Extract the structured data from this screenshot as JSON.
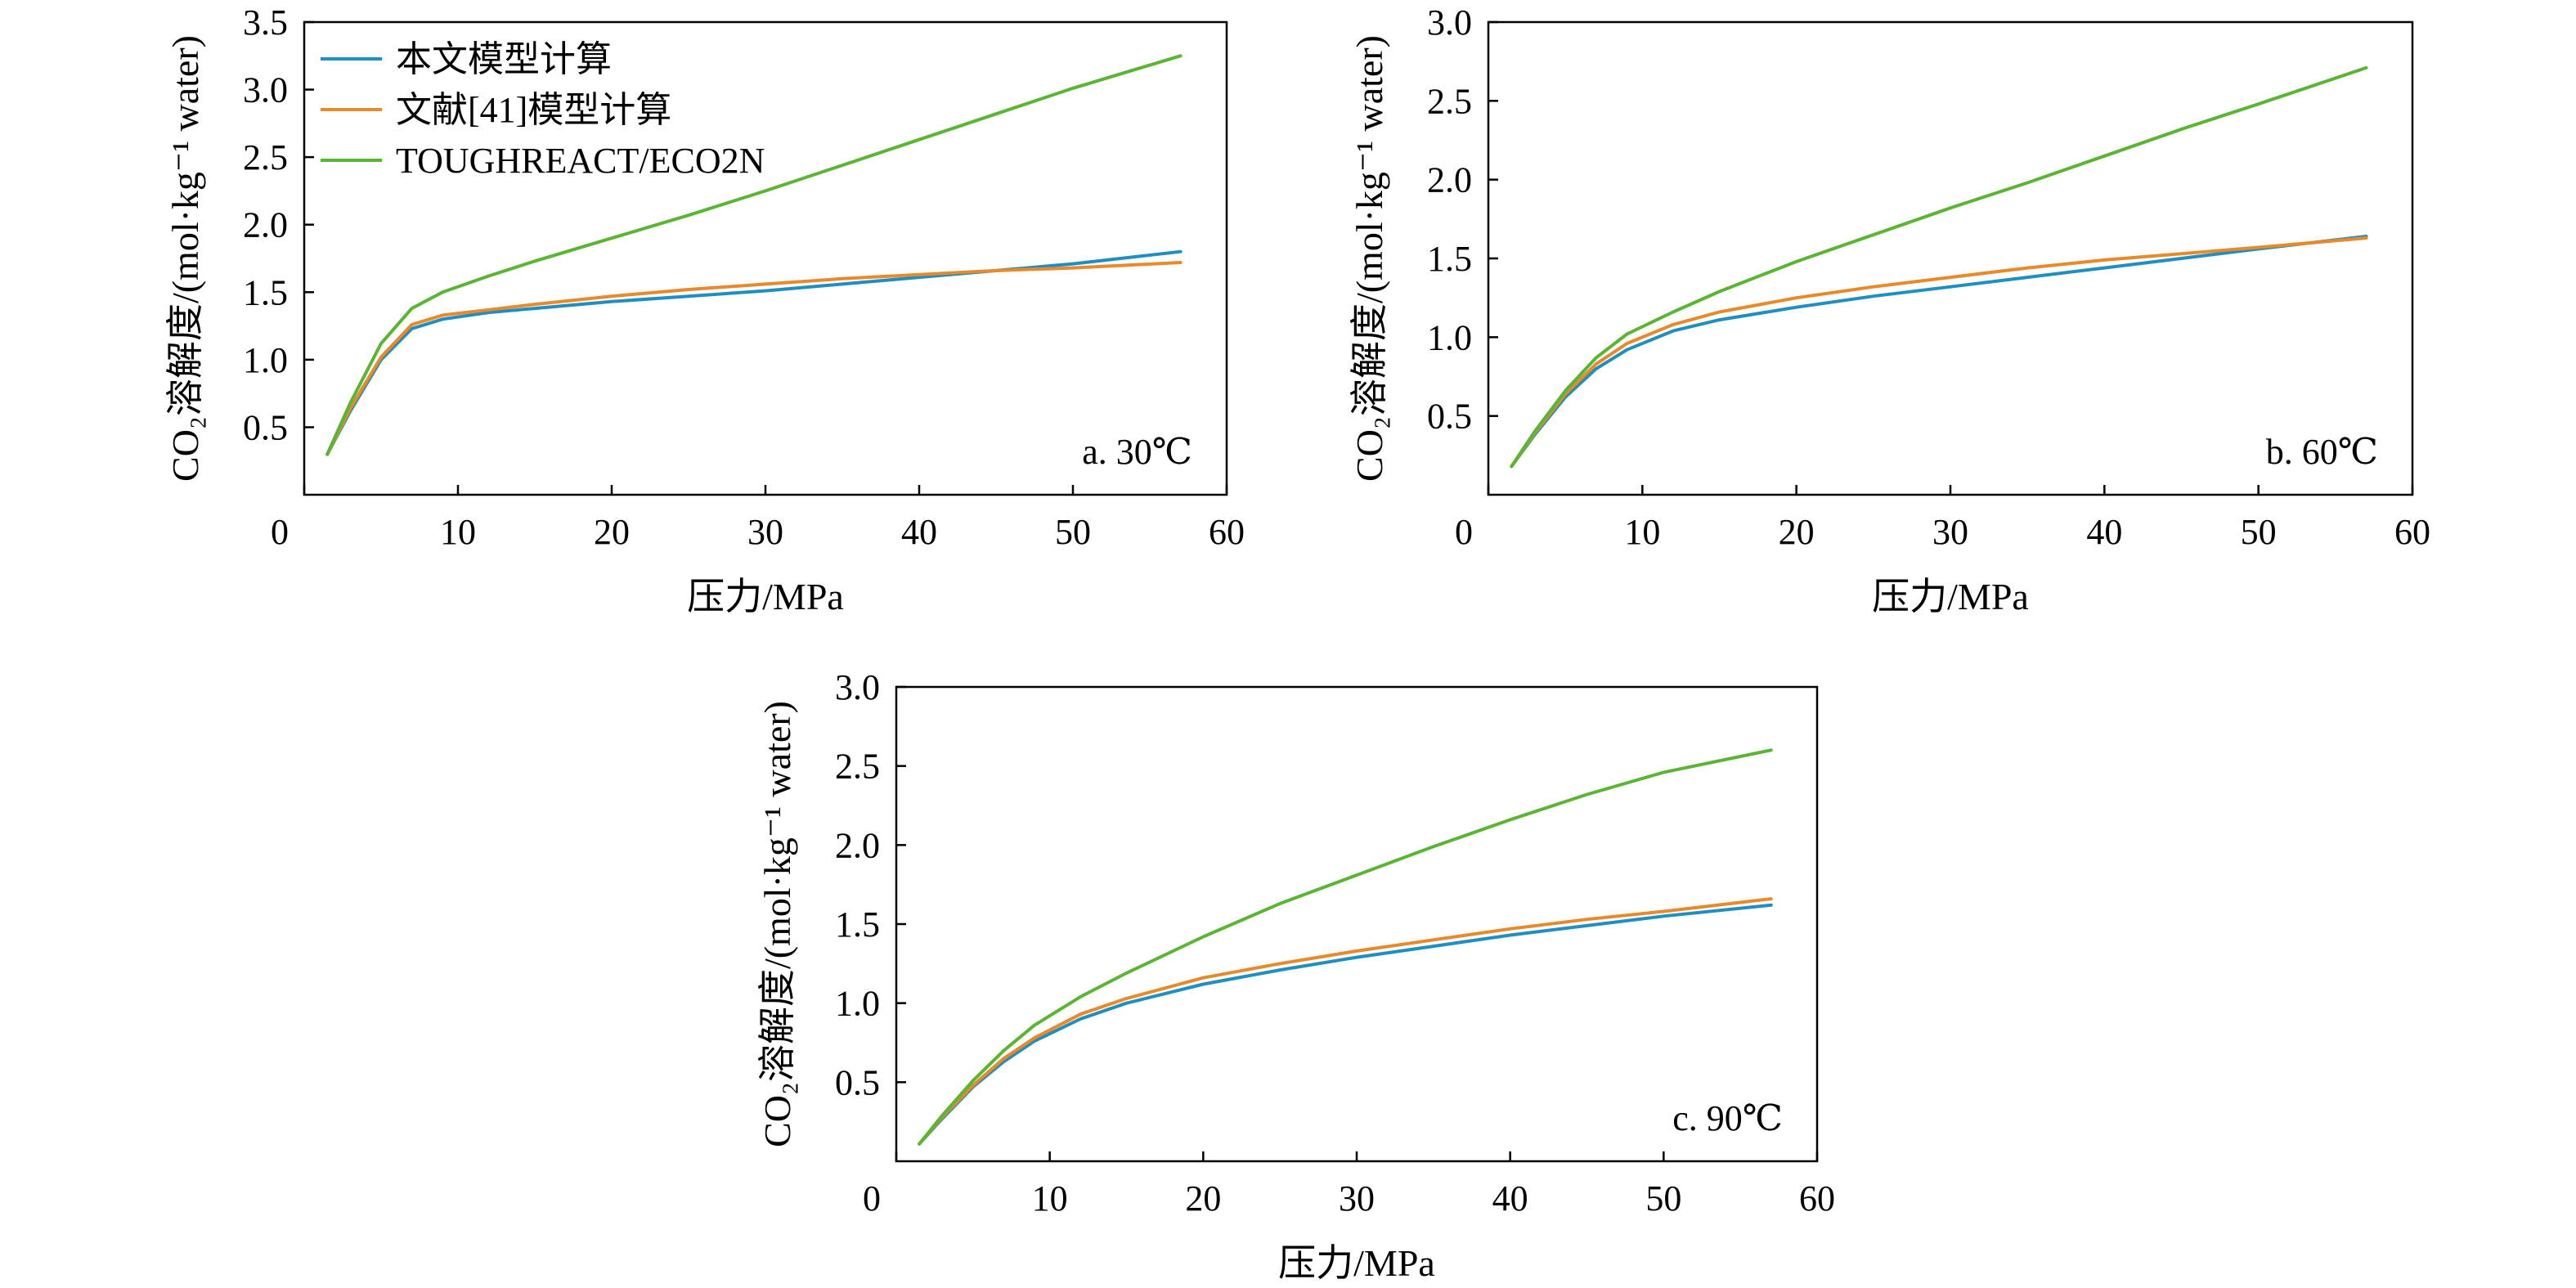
{
  "chart_data": [
    {
      "type": "line",
      "panel_label": "a. 30℃",
      "xlabel": "压力/MPa",
      "ylabel": "CO₂溶解度/(mol·kg⁻¹ water)",
      "xlim": [
        0,
        60
      ],
      "ylim": [
        0,
        3.5
      ],
      "xticks": [
        "0",
        "10",
        "20",
        "30",
        "40",
        "50",
        "60"
      ],
      "yticks": [
        "0.5",
        "1.0",
        "1.5",
        "2.0",
        "2.5",
        "3.0",
        "3.5"
      ],
      "legend_position": "top-left",
      "series": [
        {
          "name": "本文模型计算",
          "color": "#1f8fc2",
          "x": [
            1.5,
            3,
            5,
            7,
            9,
            12,
            15,
            20,
            25,
            30,
            35,
            40,
            45,
            50,
            57
          ],
          "y": [
            0.3,
            0.62,
            1.0,
            1.23,
            1.3,
            1.35,
            1.38,
            1.43,
            1.47,
            1.51,
            1.56,
            1.61,
            1.66,
            1.71,
            1.8
          ]
        },
        {
          "name": "文献[41]模型计算",
          "color": "#e8892a",
          "x": [
            1.5,
            3,
            5,
            7,
            9,
            12,
            15,
            20,
            25,
            30,
            35,
            40,
            45,
            50,
            57
          ],
          "y": [
            0.3,
            0.64,
            1.02,
            1.26,
            1.33,
            1.37,
            1.41,
            1.47,
            1.52,
            1.56,
            1.6,
            1.63,
            1.66,
            1.68,
            1.72
          ]
        },
        {
          "name": "TOUGHREACT/ECO2N",
          "color": "#5ab632",
          "x": [
            1.5,
            3,
            5,
            7,
            9,
            12,
            15,
            20,
            25,
            30,
            35,
            40,
            45,
            50,
            57
          ],
          "y": [
            0.3,
            0.68,
            1.12,
            1.38,
            1.5,
            1.62,
            1.73,
            1.9,
            2.07,
            2.25,
            2.44,
            2.63,
            2.82,
            3.01,
            3.25
          ]
        }
      ]
    },
    {
      "type": "line",
      "panel_label": "b. 60℃",
      "xlabel": "压力/MPa",
      "ylabel": "CO₂溶解度/(mol·kg⁻¹ water)",
      "xlim": [
        0,
        60
      ],
      "ylim": [
        0,
        3.0
      ],
      "xticks": [
        "0",
        "10",
        "20",
        "30",
        "40",
        "50",
        "60"
      ],
      "yticks": [
        "0.5",
        "1.0",
        "1.5",
        "2.0",
        "2.5",
        "3.0"
      ],
      "series": [
        {
          "name": "本文模型计算",
          "color": "#1f8fc2",
          "x": [
            1.5,
            3,
            5,
            7,
            9,
            12,
            15,
            20,
            25,
            30,
            35,
            40,
            45,
            50,
            57
          ],
          "y": [
            0.18,
            0.38,
            0.62,
            0.8,
            0.92,
            1.04,
            1.11,
            1.19,
            1.26,
            1.32,
            1.38,
            1.44,
            1.5,
            1.56,
            1.64
          ]
        },
        {
          "name": "文献[41]模型计算",
          "color": "#e8892a",
          "x": [
            1.5,
            3,
            5,
            7,
            9,
            12,
            15,
            20,
            25,
            30,
            35,
            40,
            45,
            50,
            57
          ],
          "y": [
            0.18,
            0.39,
            0.64,
            0.83,
            0.96,
            1.08,
            1.16,
            1.25,
            1.32,
            1.38,
            1.44,
            1.49,
            1.53,
            1.57,
            1.63
          ]
        },
        {
          "name": "TOUGHREACT/ECO2N",
          "color": "#5ab632",
          "x": [
            1.5,
            3,
            5,
            7,
            9,
            12,
            15,
            20,
            25,
            30,
            35,
            40,
            45,
            50,
            57
          ],
          "y": [
            0.18,
            0.4,
            0.66,
            0.87,
            1.02,
            1.16,
            1.29,
            1.48,
            1.65,
            1.82,
            1.98,
            2.15,
            2.32,
            2.48,
            2.71
          ]
        }
      ]
    },
    {
      "type": "line",
      "panel_label": "c. 90℃",
      "xlabel": "压力/MPa",
      "ylabel": "CO₂溶解度/(mol·kg⁻¹ water)",
      "xlim": [
        0,
        60
      ],
      "ylim": [
        0,
        3.0
      ],
      "xticks": [
        "0",
        "10",
        "20",
        "30",
        "40",
        "50",
        "60"
      ],
      "yticks": [
        "0.5",
        "1.0",
        "1.5",
        "2.0",
        "2.5",
        "3.0"
      ],
      "series": [
        {
          "name": "本文模型计算",
          "color": "#1f8fc2",
          "x": [
            1.5,
            3,
            5,
            7,
            9,
            12,
            15,
            20,
            25,
            30,
            35,
            40,
            45,
            50,
            57
          ],
          "y": [
            0.11,
            0.27,
            0.47,
            0.63,
            0.76,
            0.9,
            1.0,
            1.12,
            1.21,
            1.29,
            1.36,
            1.43,
            1.49,
            1.55,
            1.62
          ]
        },
        {
          "name": "文献[41]模型计算",
          "color": "#e8892a",
          "x": [
            1.5,
            3,
            5,
            7,
            9,
            12,
            15,
            20,
            25,
            30,
            35,
            40,
            45,
            50,
            57
          ],
          "y": [
            0.11,
            0.28,
            0.48,
            0.65,
            0.78,
            0.93,
            1.03,
            1.16,
            1.25,
            1.33,
            1.4,
            1.47,
            1.53,
            1.58,
            1.66
          ]
        },
        {
          "name": "TOUGHREACT/ECO2N",
          "color": "#5ab632",
          "x": [
            1.5,
            3,
            5,
            7,
            9,
            12,
            15,
            20,
            25,
            30,
            35,
            40,
            45,
            50,
            57
          ],
          "y": [
            0.11,
            0.29,
            0.51,
            0.7,
            0.86,
            1.04,
            1.19,
            1.42,
            1.63,
            1.81,
            1.99,
            2.16,
            2.32,
            2.46,
            2.6
          ]
        }
      ]
    }
  ]
}
